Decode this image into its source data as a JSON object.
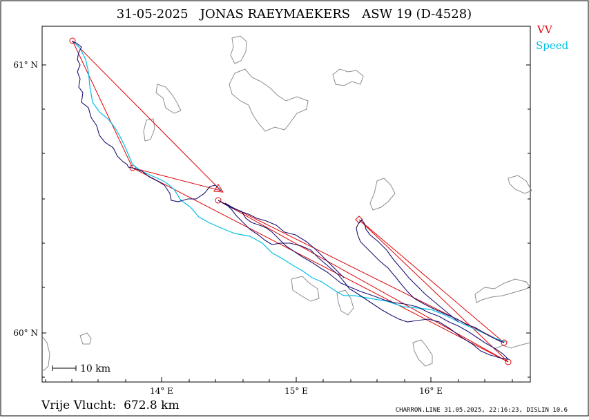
{
  "map": {
    "title": "31-05-2025   JONAS RAEYMAEKERS   ASW 19 (D-4528)",
    "legend": [
      {
        "label": "VV",
        "color": "#e00000"
      },
      {
        "label": "Speed",
        "color": "#00bfe6"
      }
    ],
    "lat_labels": [
      "61° N",
      "60° N"
    ],
    "lon_labels": [
      "14° E",
      "15° E",
      "16° E"
    ],
    "scale_bar_label": "10 km",
    "distance_text": "Vrije Vlucht:  672.8 km",
    "footer": "CHARRON.LINE 31.05.2025, 22:16:23, DISLIN 10.6",
    "colors": {
      "task_line": "#e00000",
      "speed_track": "#00bfe6",
      "track": "#1a1270",
      "lakes": "#8c8c8c"
    }
  }
}
